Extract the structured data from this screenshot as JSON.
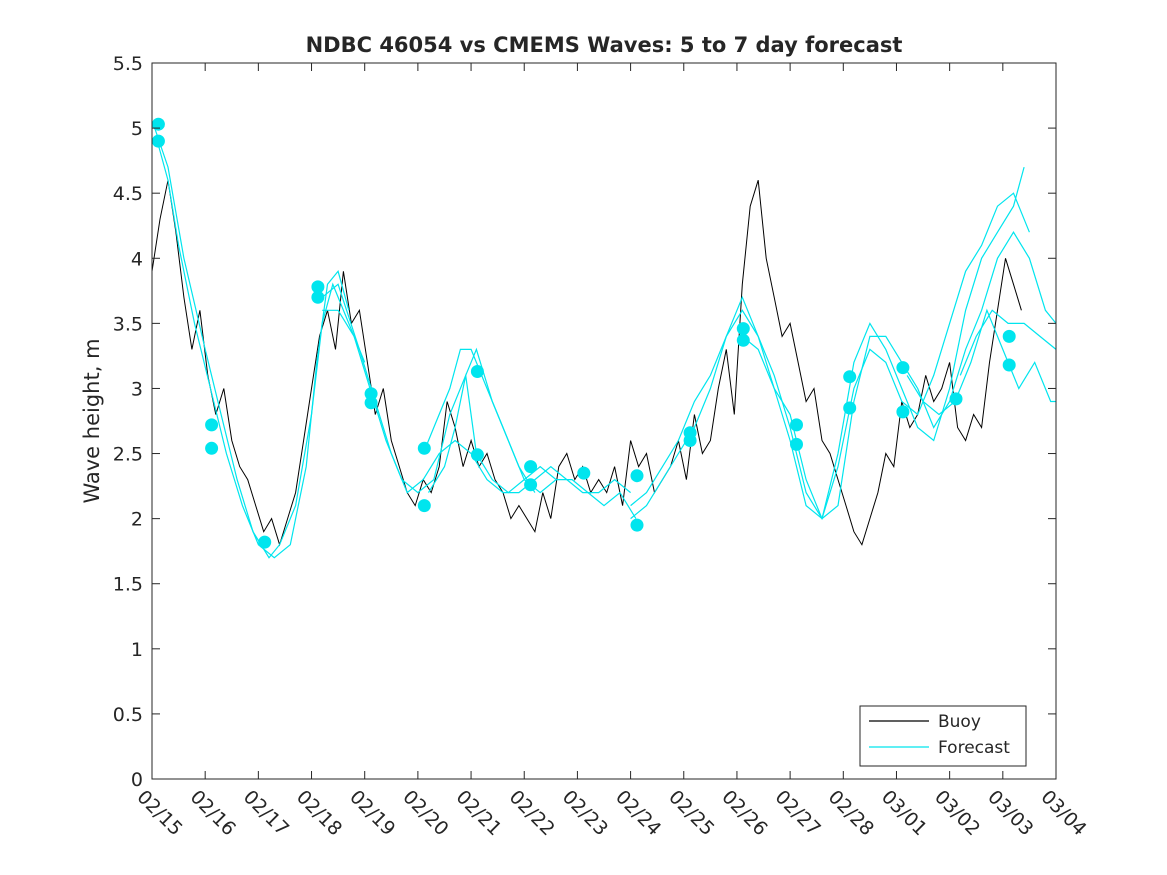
{
  "chart_data": {
    "type": "line",
    "title": "NDBC 46054 vs CMEMS Waves: 5 to 7 day forecast",
    "xlabel": "",
    "ylabel": "Wave height, m",
    "xlim": [
      0,
      17
    ],
    "ylim": [
      0,
      5.5
    ],
    "y_ticks": [
      0,
      0.5,
      1,
      1.5,
      2,
      2.5,
      3,
      3.5,
      4,
      4.5,
      5,
      5.5
    ],
    "y_tick_labels": [
      "0",
      "0.5",
      "1",
      "1.5",
      "2",
      "2.5",
      "3",
      "3.5",
      "4",
      "4.5",
      "5",
      "5.5"
    ],
    "x_ticks": [
      0,
      1,
      2,
      3,
      4,
      5,
      6,
      7,
      8,
      9,
      10,
      11,
      12,
      13,
      14,
      15,
      16,
      17
    ],
    "x_tick_labels": [
      "02/15",
      "02/16",
      "02/17",
      "02/18",
      "02/19",
      "02/20",
      "02/21",
      "02/22",
      "02/23",
      "02/24",
      "02/25",
      "02/26",
      "02/27",
      "02/28",
      "03/01",
      "03/02",
      "03/03",
      "03/04"
    ],
    "grid": false,
    "legend": {
      "position": "bottom-right",
      "entries": [
        "Buoy",
        "Forecast"
      ]
    },
    "colors": {
      "buoy": "#000000",
      "forecast": "#00e5ee",
      "axes": "#262626"
    },
    "series": [
      {
        "name": "Buoy",
        "x": [
          0,
          0.15,
          0.3,
          0.45,
          0.6,
          0.75,
          0.9,
          1.05,
          1.2,
          1.35,
          1.5,
          1.65,
          1.8,
          1.95,
          2.1,
          2.25,
          2.4,
          2.55,
          2.7,
          2.85,
          3.0,
          3.15,
          3.3,
          3.45,
          3.6,
          3.75,
          3.9,
          4.05,
          4.2,
          4.35,
          4.5,
          4.65,
          4.8,
          4.95,
          5.1,
          5.25,
          5.4,
          5.55,
          5.7,
          5.85,
          6.0,
          6.15,
          6.3,
          6.45,
          6.6,
          6.75,
          6.9,
          7.05,
          7.2,
          7.35,
          7.5,
          7.65,
          7.8,
          7.95,
          8.1,
          8.25,
          8.4,
          8.55,
          8.7,
          8.85,
          9.0,
          9.15,
          9.3,
          9.45,
          9.6,
          9.75,
          9.9,
          10.05,
          10.2,
          10.35,
          10.5,
          10.65,
          10.8,
          10.95,
          11.1,
          11.25,
          11.4,
          11.55,
          11.7,
          11.85,
          12.0,
          12.15,
          12.3,
          12.45,
          12.6,
          12.75,
          12.9,
          13.05,
          13.2,
          13.35,
          13.5,
          13.65,
          13.8,
          13.95,
          14.1,
          14.25,
          14.4,
          14.55,
          14.7,
          14.85,
          15.0,
          15.15,
          15.3,
          15.45,
          15.6,
          15.75,
          15.9,
          16.05,
          16.2,
          16.35
        ],
        "values": [
          3.9,
          4.3,
          4.6,
          4.2,
          3.7,
          3.3,
          3.6,
          3.1,
          2.8,
          3.0,
          2.6,
          2.4,
          2.3,
          2.1,
          1.9,
          2.0,
          1.8,
          2.0,
          2.2,
          2.6,
          3.0,
          3.4,
          3.6,
          3.3,
          3.9,
          3.5,
          3.6,
          3.2,
          2.8,
          3.0,
          2.6,
          2.4,
          2.2,
          2.1,
          2.3,
          2.2,
          2.4,
          2.9,
          2.7,
          2.4,
          2.6,
          2.4,
          2.5,
          2.3,
          2.2,
          2.0,
          2.1,
          2.0,
          1.9,
          2.2,
          2.0,
          2.4,
          2.5,
          2.3,
          2.4,
          2.2,
          2.3,
          2.2,
          2.4,
          2.1,
          2.6,
          2.4,
          2.5,
          2.2,
          2.3,
          2.4,
          2.6,
          2.3,
          2.8,
          2.5,
          2.6,
          3.0,
          3.3,
          2.8,
          3.8,
          4.4,
          4.6,
          4.0,
          3.7,
          3.4,
          3.5,
          3.2,
          2.9,
          3.0,
          2.6,
          2.5,
          2.3,
          2.1,
          1.9,
          1.8,
          2.0,
          2.2,
          2.5,
          2.4,
          2.9,
          2.7,
          2.8,
          3.1,
          2.9,
          3.0,
          3.2,
          2.7,
          2.6,
          2.8,
          2.7,
          3.2,
          3.6,
          4.0,
          3.8,
          3.6
        ]
      },
      {
        "name": "Forecast",
        "segments": [
          {
            "x": [
              0.1,
              0.3,
              0.5,
              0.8,
              1.1,
              1.4,
              1.7,
              2.0,
              2.3,
              2.6,
              2.9,
              3.1,
              3.3,
              3.5,
              3.7
            ],
            "values": [
              4.9,
              4.6,
              4.1,
              3.5,
              3.0,
              2.5,
              2.1,
              1.8,
              1.7,
              1.8,
              2.4,
              3.2,
              3.8,
              3.9,
              3.6
            ]
          },
          {
            "x": [
              0.05,
              0.3,
              0.6,
              1.0,
              1.3,
              1.6,
              1.9,
              2.2,
              2.4,
              2.7,
              3.0,
              3.2,
              3.4,
              3.7,
              4.0
            ],
            "values": [
              5.0,
              4.7,
              4.0,
              3.3,
              2.8,
              2.3,
              1.9,
              1.7,
              1.8,
              2.1,
              2.8,
              3.5,
              3.8,
              3.5,
              3.2
            ]
          },
          {
            "x": [
              3.2,
              3.5,
              3.8,
              4.1,
              4.4,
              4.7,
              5.0,
              5.3,
              5.6,
              5.9,
              6.1,
              6.4,
              6.7,
              7.0,
              7.3,
              7.6,
              7.9,
              8.2,
              8.5,
              8.8,
              9.1
            ],
            "values": [
              3.6,
              3.6,
              3.4,
              3.0,
              2.6,
              2.3,
              2.2,
              2.3,
              2.8,
              3.1,
              2.5,
              2.3,
              2.2,
              2.3,
              2.4,
              2.3,
              2.3,
              2.2,
              2.1,
              2.2,
              2.0
            ]
          },
          {
            "x": [
              3.2,
              3.5,
              3.9,
              4.2,
              4.5,
              4.8,
              5.1,
              5.4,
              5.7,
              6.0,
              6.3,
              6.6,
              6.9,
              7.2,
              7.5,
              7.8,
              8.1,
              8.4,
              8.7,
              9.0
            ],
            "values": [
              3.7,
              3.8,
              3.3,
              2.9,
              2.5,
              2.2,
              2.3,
              2.5,
              2.6,
              2.5,
              2.3,
              2.2,
              2.2,
              2.3,
              2.4,
              2.3,
              2.2,
              2.2,
              2.3,
              2.2
            ]
          },
          {
            "x": [
              5.1,
              5.3,
              5.6,
              5.8,
              6.0,
              6.3,
              6.6,
              6.9,
              7.2
            ],
            "values": [
              2.5,
              2.7,
              3.0,
              3.3,
              3.3,
              3.0,
              2.7,
              2.4,
              2.2
            ]
          },
          {
            "x": [
              5.2,
              5.5,
              5.7,
              5.9,
              6.1,
              6.4,
              6.7,
              7.0,
              7.3,
              7.6
            ],
            "values": [
              2.2,
              2.4,
              2.7,
              3.1,
              3.3,
              2.9,
              2.6,
              2.3,
              2.2,
              2.3
            ]
          },
          {
            "x": [
              9.0,
              9.3,
              9.6,
              9.9,
              10.2,
              10.5,
              10.8,
              11.1,
              11.4,
              11.7,
              12.0,
              12.3,
              12.6,
              12.9,
              13.2,
              13.5,
              13.8,
              14.1,
              14.4,
              14.7,
              15.0,
              15.3,
              15.6,
              15.9,
              16.2,
              16.4
            ],
            "values": [
              2.0,
              2.1,
              2.3,
              2.5,
              2.7,
              3.0,
              3.4,
              3.6,
              3.4,
              3.0,
              2.6,
              2.1,
              2.0,
              2.5,
              3.2,
              3.5,
              3.3,
              3.0,
              2.7,
              2.6,
              3.0,
              3.6,
              4.0,
              4.2,
              4.4,
              4.7
            ]
          },
          {
            "x": [
              9.0,
              9.3,
              9.6,
              9.9,
              10.2,
              10.5,
              10.8,
              11.1,
              11.4,
              11.7,
              12.0,
              12.3,
              12.6,
              12.9,
              13.2,
              13.5,
              13.8,
              14.1,
              14.4,
              14.7,
              15.0,
              15.3,
              15.6,
              15.9,
              16.2,
              16.5
            ],
            "values": [
              2.1,
              2.2,
              2.4,
              2.6,
              2.9,
              3.1,
              3.4,
              3.7,
              3.4,
              3.1,
              2.7,
              2.2,
              2.0,
              2.4,
              3.0,
              3.3,
              3.2,
              2.9,
              2.8,
              3.1,
              3.5,
              3.9,
              4.1,
              4.4,
              4.5,
              4.2
            ]
          },
          {
            "x": [
              11.1,
              11.4,
              11.7,
              12.0,
              12.3,
              12.6,
              12.9,
              13.2,
              13.5,
              13.8,
              14.1,
              14.4,
              14.7,
              15.0,
              15.3,
              15.6,
              15.9,
              16.2,
              16.5,
              16.8,
              17.0
            ],
            "values": [
              3.4,
              3.3,
              3.0,
              2.8,
              2.3,
              2.0,
              2.1,
              2.9,
              3.4,
              3.4,
              3.2,
              3.0,
              2.7,
              2.9,
              3.3,
              3.6,
              4.0,
              4.2,
              4.0,
              3.6,
              3.5
            ]
          },
          {
            "x": [
              14.2,
              14.5,
              14.8,
              15.1,
              15.4,
              15.7,
              16.0,
              16.3,
              16.6,
              16.9,
              17.0
            ],
            "values": [
              3.1,
              2.9,
              2.8,
              2.9,
              3.2,
              3.6,
              3.3,
              3.0,
              3.2,
              2.9,
              2.9
            ]
          },
          {
            "x": [
              15.2,
              15.5,
              15.8,
              16.1,
              16.4,
              16.7,
              17.0
            ],
            "values": [
              3.1,
              3.4,
              3.6,
              3.5,
              3.5,
              3.4,
              3.3
            ]
          }
        ]
      }
    ],
    "markers": {
      "name": "Forecast",
      "x": [
        0.12,
        0.12,
        1.12,
        1.12,
        2.12,
        3.12,
        3.12,
        4.12,
        4.12,
        5.12,
        5.12,
        6.12,
        6.12,
        7.12,
        7.12,
        8.12,
        9.12,
        9.12,
        10.12,
        10.12,
        11.12,
        11.12,
        12.12,
        12.12,
        13.12,
        13.12,
        14.12,
        14.12,
        15.12,
        16.12,
        16.12
      ],
      "values": [
        5.03,
        4.9,
        2.72,
        2.54,
        1.82,
        3.78,
        3.7,
        2.96,
        2.89,
        2.54,
        2.1,
        3.13,
        2.49,
        2.4,
        2.26,
        2.35,
        2.33,
        1.95,
        2.66,
        2.6,
        3.46,
        3.37,
        2.72,
        2.57,
        3.09,
        2.85,
        3.16,
        2.82,
        2.92,
        3.4,
        3.18
      ]
    }
  }
}
